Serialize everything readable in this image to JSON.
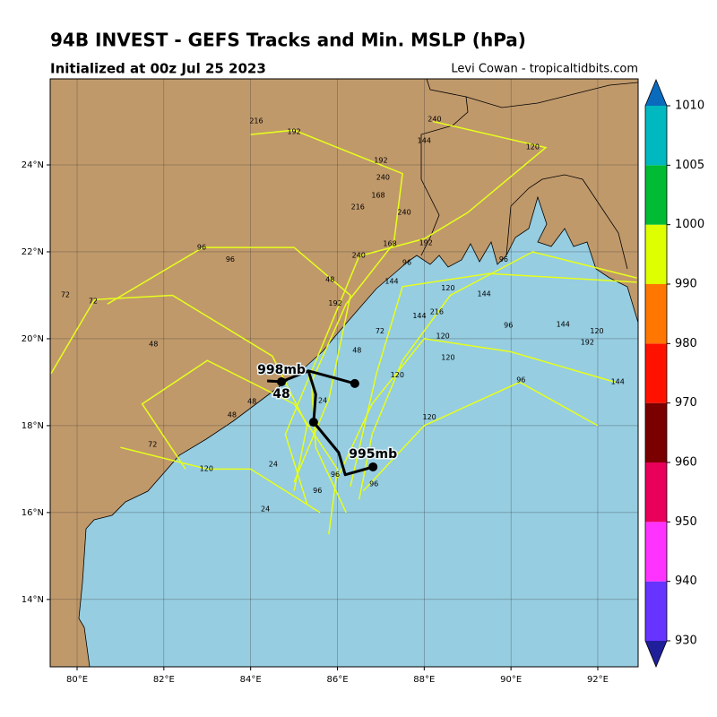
{
  "chart_data": {
    "type": "map",
    "title": "94B INVEST - GEFS Tracks and Min. MSLP (hPa)",
    "subtitle": "Initialized at 00z Jul 25 2023",
    "credit": "Levi Cowan - tropicaltidbits.com",
    "xlim": [
      79.38,
      92.93
    ],
    "ylim": [
      12.45,
      25.98
    ],
    "xticks": [
      {
        "value": 80,
        "label": "80°E"
      },
      {
        "value": 82,
        "label": "82°E"
      },
      {
        "value": 84,
        "label": "84°E"
      },
      {
        "value": 86,
        "label": "86°E"
      },
      {
        "value": 88,
        "label": "88°E"
      },
      {
        "value": 90,
        "label": "90°E"
      },
      {
        "value": 92,
        "label": "92°E"
      }
    ],
    "yticks": [
      {
        "value": 14,
        "label": "14°N"
      },
      {
        "value": 16,
        "label": "16°N"
      },
      {
        "value": 18,
        "label": "18°N"
      },
      {
        "value": 20,
        "label": "20°N"
      },
      {
        "value": 22,
        "label": "22°N"
      },
      {
        "value": 24,
        "label": "24°N"
      }
    ],
    "grid": true,
    "colorbar": {
      "levels": [
        930,
        940,
        950,
        960,
        970,
        980,
        990,
        1000,
        1005,
        1010
      ],
      "colors": [
        "#6633ff",
        "#ff33ff",
        "#e8005a",
        "#7a0000",
        "#ff1100",
        "#ff7700",
        "#ddff00",
        "#00bb33",
        "#00b8c0"
      ],
      "under_color": "#1f1f99",
      "over_color": "#0a6bbd"
    },
    "ensemble_color": "#e6ff1a",
    "ensemble_tracks": [
      {
        "lon": [
          86.2,
          85.5,
          85.4,
          86.2,
          87.3,
          87.5,
          85.0,
          84.0
        ],
        "lat": [
          16.0,
          17.5,
          19.0,
          20.8,
          22.2,
          23.8,
          24.8,
          24.7
        ]
      },
      {
        "lon": [
          85.0,
          85.3,
          84.5,
          82.2,
          80.4,
          79.4
        ],
        "lat": [
          16.5,
          18.0,
          19.6,
          21.0,
          20.9,
          19.2
        ]
      },
      {
        "lon": [
          86.5,
          86.8,
          87.5,
          88.6,
          90.5,
          92.9
        ],
        "lat": [
          16.3,
          17.8,
          19.5,
          21.0,
          22.0,
          21.4
        ]
      },
      {
        "lon": [
          85.8,
          86.0,
          85.0,
          83.0,
          81.5,
          82.5
        ],
        "lat": [
          15.5,
          17.0,
          18.5,
          19.5,
          18.5,
          17.0
        ]
      },
      {
        "lon": [
          86.0,
          86.8,
          88.0,
          90.0,
          92.4
        ],
        "lat": [
          16.8,
          18.5,
          20.0,
          19.7,
          19.0
        ]
      },
      {
        "lon": [
          85.3,
          84.8,
          85.8,
          86.5,
          88.0,
          89.0,
          90.8,
          88.2
        ],
        "lat": [
          16.2,
          17.8,
          20.2,
          21.9,
          22.3,
          22.9,
          24.4,
          25.0
        ]
      },
      {
        "lon": [
          86.6,
          88.0,
          90.2,
          92.0
        ],
        "lat": [
          16.5,
          18.0,
          19.0,
          18.0
        ]
      },
      {
        "lon": [
          85.6,
          84.0,
          83.0,
          81.0
        ],
        "lat": [
          16.0,
          17.0,
          17.0,
          17.5
        ]
      },
      {
        "lon": [
          86.3,
          86.9,
          87.5,
          89.5,
          92.9
        ],
        "lat": [
          16.6,
          19.2,
          21.2,
          21.5,
          21.3
        ]
      },
      {
        "lon": [
          85.0,
          85.8,
          86.3,
          85.0,
          82.9,
          80.7
        ],
        "lat": [
          16.7,
          18.6,
          21.0,
          22.1,
          22.1,
          20.8
        ]
      }
    ],
    "hour_labels": {
      "text": [
        216,
        192,
        240,
        144,
        120,
        192,
        240,
        168,
        216,
        240,
        168,
        192,
        96,
        96,
        240,
        96,
        96,
        48,
        144,
        120,
        144,
        72,
        72,
        192,
        216,
        144,
        120,
        192,
        48,
        72,
        120,
        120,
        120,
        96,
        144,
        48,
        120,
        72,
        120,
        24,
        96,
        96,
        48,
        48,
        24,
        96,
        144,
        96,
        48,
        24
      ],
      "lon": [
        84.13,
        85.0,
        88.24,
        88.0,
        90.5,
        87.0,
        87.05,
        86.94,
        86.47,
        87.54,
        87.21,
        88.04,
        82.87,
        83.53,
        86.49,
        87.6,
        89.83,
        85.83,
        87.25,
        88.55,
        89.38,
        79.73,
        80.37,
        85.95,
        88.29,
        91.2,
        91.98,
        91.76,
        81.76,
        86.98,
        88.43,
        88.55,
        87.38,
        90.23,
        92.46,
        79.26,
        88.12,
        81.74,
        82.98,
        84.34,
        86.84,
        85.54,
        84.03,
        83.57,
        84.52,
        85.95,
        87.89,
        89.94,
        86.45,
        85.66
      ],
      "lat": [
        25.01,
        24.76,
        25.05,
        24.56,
        24.41,
        24.1,
        23.71,
        23.3,
        23.03,
        22.91,
        22.19,
        22.21,
        22.1,
        21.82,
        21.92,
        21.75,
        21.82,
        21.36,
        21.32,
        21.16,
        21.03,
        21.01,
        20.87,
        20.81,
        20.62,
        20.33,
        20.17,
        19.92,
        19.88,
        20.17,
        20.06,
        19.57,
        19.16,
        19.05,
        19.01,
        19.01,
        18.19,
        17.57,
        17.01,
        16.08,
        16.66,
        16.5,
        18.56,
        18.25,
        17.11,
        16.87,
        20.52,
        20.31,
        19.73,
        18.58
      ]
    },
    "mean_track": {
      "color": "#000000",
      "lon": [
        86.82,
        86.18,
        86.03,
        85.45,
        85.5,
        85.33,
        84.71,
        84.38,
        null,
        85.33,
        86.4
      ],
      "lat": [
        17.05,
        16.87,
        17.38,
        18.08,
        18.72,
        19.26,
        19.01,
        19.03,
        null,
        19.26,
        18.97
      ]
    },
    "mean_points": {
      "lon": [
        86.82,
        85.45,
        86.4,
        84.71
      ],
      "lat": [
        17.05,
        18.08,
        18.97,
        19.01
      ]
    },
    "annotations": [
      {
        "text": "998mb",
        "lon": 84.71,
        "lat": 19.28
      },
      {
        "text": "48",
        "lon": 84.71,
        "lat": 18.72
      },
      {
        "text": "995mb",
        "lon": 86.82,
        "lat": 17.34
      }
    ]
  }
}
